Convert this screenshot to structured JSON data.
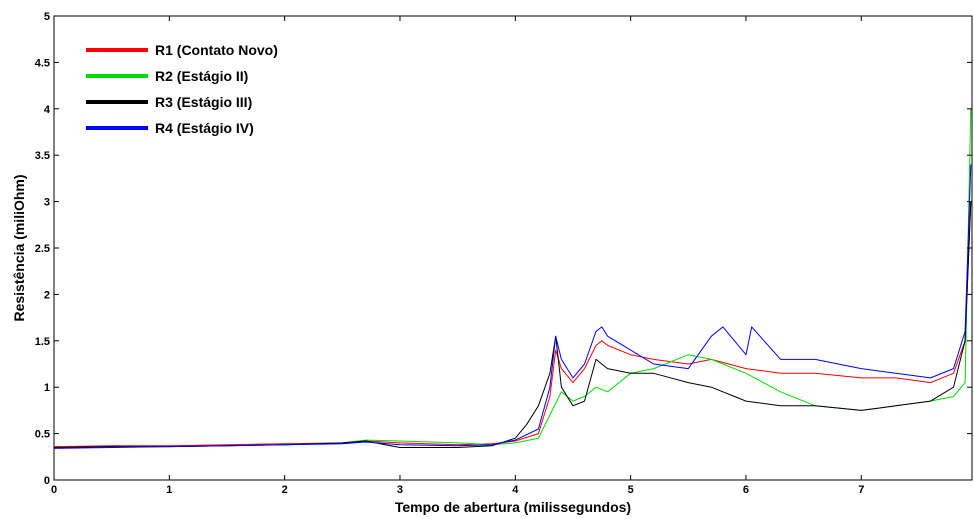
{
  "chart_data": {
    "type": "line",
    "title": "",
    "xlabel": "Tempo de abertura (milissegundos)",
    "ylabel": "Resistência (miliOhm)",
    "xlim": [
      0,
      7.96
    ],
    "ylim": [
      0,
      5
    ],
    "xticks": [
      "0",
      "1",
      "2",
      "3",
      "4",
      "5",
      "6",
      "7"
    ],
    "yticks": [
      "0",
      "0.5",
      "1",
      "1.5",
      "2",
      "2.5",
      "3",
      "3.5",
      "4",
      "4.5",
      "5"
    ],
    "grid": false,
    "legend_position": "top-left",
    "series": [
      {
        "name": "R1 (Contato Novo)",
        "color": "#ff0000",
        "x": [
          0,
          0.5,
          1,
          1.5,
          2,
          2.5,
          2.7,
          3,
          3.5,
          3.8,
          4.0,
          4.2,
          4.3,
          4.35,
          4.4,
          4.5,
          4.6,
          4.7,
          4.75,
          4.8,
          5.0,
          5.2,
          5.5,
          5.7,
          6.0,
          6.3,
          6.6,
          7.0,
          7.3,
          7.6,
          7.8,
          7.9,
          7.95
        ],
        "y": [
          0.36,
          0.37,
          0.37,
          0.38,
          0.39,
          0.4,
          0.42,
          0.4,
          0.38,
          0.39,
          0.42,
          0.5,
          0.9,
          1.4,
          1.2,
          1.05,
          1.2,
          1.45,
          1.5,
          1.45,
          1.35,
          1.3,
          1.25,
          1.3,
          1.2,
          1.15,
          1.15,
          1.1,
          1.1,
          1.05,
          1.15,
          1.5,
          3.0
        ]
      },
      {
        "name": "R2 (Estágio II)",
        "color": "#00dd00",
        "x": [
          0,
          0.5,
          1,
          1.5,
          2,
          2.5,
          2.7,
          3,
          3.5,
          3.8,
          4.0,
          4.2,
          4.3,
          4.4,
          4.5,
          4.6,
          4.7,
          4.8,
          4.9,
          5.0,
          5.2,
          5.5,
          5.7,
          6.0,
          6.3,
          6.6,
          7.0,
          7.3,
          7.6,
          7.8,
          7.9,
          7.95
        ],
        "y": [
          0.35,
          0.36,
          0.36,
          0.37,
          0.38,
          0.4,
          0.43,
          0.42,
          0.4,
          0.38,
          0.4,
          0.45,
          0.7,
          0.95,
          0.85,
          0.9,
          1.0,
          0.95,
          1.05,
          1.15,
          1.2,
          1.35,
          1.3,
          1.15,
          0.95,
          0.8,
          0.75,
          0.8,
          0.85,
          0.9,
          1.05,
          4.0
        ]
      },
      {
        "name": "R3 (Estágio III)",
        "color": "#000000",
        "x": [
          0,
          0.5,
          1,
          1.5,
          2,
          2.5,
          2.7,
          3,
          3.5,
          3.8,
          4.0,
          4.1,
          4.2,
          4.3,
          4.35,
          4.4,
          4.5,
          4.6,
          4.7,
          4.8,
          5.0,
          5.2,
          5.5,
          5.7,
          6.0,
          6.3,
          6.6,
          7.0,
          7.3,
          7.6,
          7.8,
          7.9,
          7.95
        ],
        "y": [
          0.35,
          0.36,
          0.36,
          0.37,
          0.38,
          0.4,
          0.42,
          0.35,
          0.35,
          0.37,
          0.45,
          0.6,
          0.8,
          1.15,
          1.55,
          1.0,
          0.8,
          0.85,
          1.3,
          1.2,
          1.15,
          1.15,
          1.05,
          1.0,
          0.85,
          0.8,
          0.8,
          0.75,
          0.8,
          0.85,
          1.0,
          1.5,
          3.0
        ]
      },
      {
        "name": "R4 (Estágio IV)",
        "color": "#0000ff",
        "x": [
          0,
          0.5,
          1,
          1.5,
          2,
          2.5,
          2.7,
          3,
          3.5,
          3.8,
          4.0,
          4.2,
          4.3,
          4.35,
          4.4,
          4.5,
          4.6,
          4.7,
          4.75,
          4.8,
          5.0,
          5.2,
          5.5,
          5.7,
          5.8,
          6.0,
          6.05,
          6.3,
          6.6,
          7.0,
          7.3,
          7.6,
          7.8,
          7.9,
          7.95
        ],
        "y": [
          0.34,
          0.35,
          0.36,
          0.37,
          0.38,
          0.39,
          0.41,
          0.38,
          0.37,
          0.38,
          0.43,
          0.55,
          1.0,
          1.55,
          1.3,
          1.1,
          1.25,
          1.6,
          1.65,
          1.55,
          1.4,
          1.25,
          1.2,
          1.55,
          1.65,
          1.35,
          1.65,
          1.3,
          1.3,
          1.2,
          1.15,
          1.1,
          1.2,
          1.6,
          3.4
        ]
      }
    ]
  }
}
